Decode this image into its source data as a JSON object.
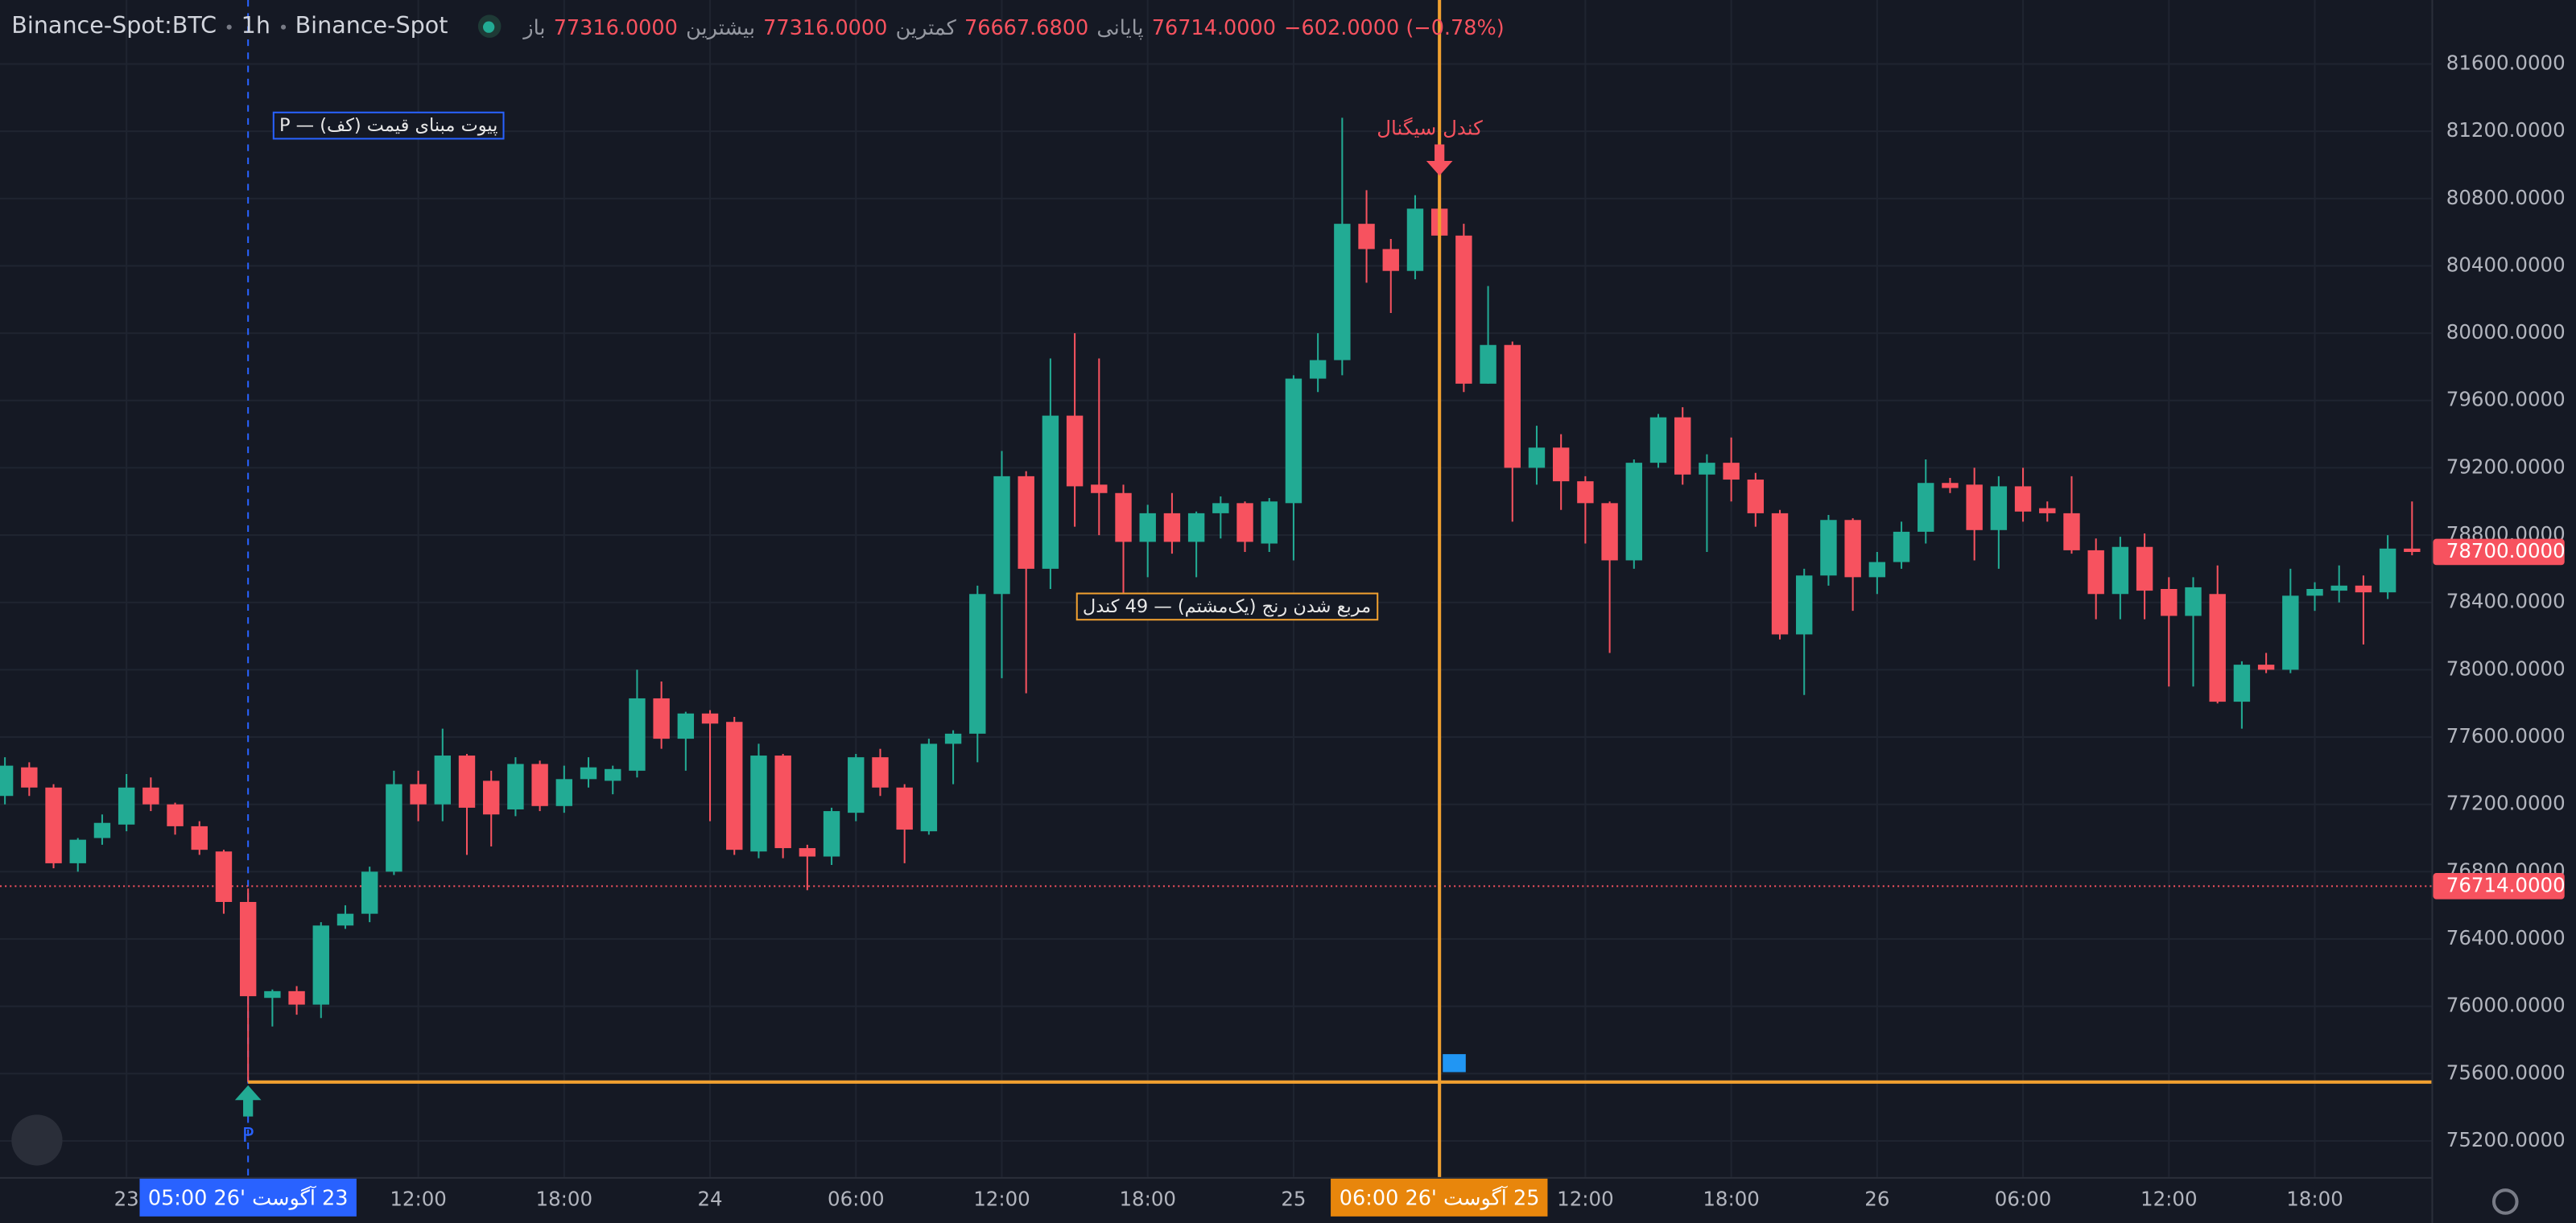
{
  "chart_data": {
    "type": "candlestick",
    "symbol": "Binance-Spot:BTC",
    "interval": "1h",
    "exchange": "Binance-Spot",
    "legend": [
      {
        "label": "باز",
        "value": "77316.0000"
      },
      {
        "label": "بیشترین",
        "value": "77316.0000"
      },
      {
        "label": "کمترین",
        "value": "76667.6800"
      },
      {
        "label": "پایانی",
        "value": "76714.0000"
      }
    ],
    "change": "−602.0000 (−0.78%)",
    "up_color": "#22ab94",
    "down_color": "#f7525f",
    "grid": true,
    "categories": [
      null,
      null,
      null,
      null,
      null,
      "23",
      null,
      null,
      null,
      null,
      null,
      null,
      null,
      null,
      null,
      null,
      null,
      "12:00",
      null,
      null,
      null,
      null,
      null,
      "18:00",
      null,
      null,
      null,
      null,
      null,
      "24",
      null,
      null,
      null,
      null,
      null,
      "06:00",
      null,
      null,
      null,
      null,
      null,
      "12:00",
      null,
      null,
      null,
      null,
      null,
      "18:00",
      null,
      null,
      null,
      null,
      null,
      "25",
      null,
      null,
      null,
      null,
      null,
      null,
      null,
      null,
      null,
      null,
      null,
      "12:00",
      null,
      null,
      null,
      null,
      null,
      "18:00",
      null,
      null,
      null,
      null,
      null,
      "26",
      null,
      null,
      null,
      null,
      null,
      "06:00",
      null,
      null,
      null,
      null,
      null,
      "12:00",
      null,
      null,
      null,
      null,
      null,
      "18:00",
      null,
      null,
      null,
      null
    ],
    "open": [
      77250,
      77420,
      77300,
      76850,
      77000,
      77080,
      77300,
      77200,
      77070,
      76920,
      76620,
      76050,
      76090,
      76010,
      76480,
      76550,
      76800,
      77320,
      77200,
      77490,
      77340,
      77170,
      77440,
      77190,
      77350,
      77340,
      77400,
      77830,
      77590,
      77740,
      77690,
      76920,
      77490,
      76940,
      76890,
      77150,
      77480,
      77300,
      77040,
      77560,
      77620,
      78450,
      79150,
      78600,
      79510,
      79100,
      79050,
      78760,
      78930,
      78760,
      78930,
      78990,
      78750,
      78990,
      79730,
      79840,
      80650,
      80500,
      80370,
      80740,
      80580,
      79700,
      79930,
      79200,
      79320,
      79120,
      78990,
      78650,
      79230,
      79500,
      79160,
      79230,
      79130,
      78930,
      78210,
      78560,
      78890,
      78550,
      78640,
      78820,
      79110,
      79100,
      78830,
      79090,
      78960,
      78930,
      78710,
      78450,
      78730,
      78480,
      78320,
      78450,
      77810,
      78030,
      78000,
      78440,
      78470,
      78500,
      78460,
      78720
    ],
    "high": [
      77480,
      77450,
      77320,
      77000,
      77140,
      77380,
      77360,
      77210,
      77100,
      76930,
      76700,
      76100,
      76120,
      76500,
      76600,
      76830,
      77400,
      77400,
      77650,
      77500,
      77400,
      77480,
      77460,
      77430,
      77480,
      77430,
      78000,
      77930,
      77750,
      77760,
      77720,
      77560,
      77500,
      76960,
      77180,
      77500,
      77530,
      77320,
      77590,
      77640,
      78500,
      79300,
      79180,
      79850,
      80000,
      79850,
      79100,
      78980,
      79050,
      78940,
      79030,
      79000,
      79020,
      79750,
      80000,
      81280,
      80850,
      80560,
      80820,
      80830,
      80650,
      80280,
      79950,
      79450,
      79400,
      79150,
      79000,
      79250,
      79520,
      79560,
      79280,
      79380,
      79170,
      78950,
      78600,
      78920,
      78900,
      78700,
      78880,
      79250,
      79140,
      79200,
      79150,
      79200,
      79000,
      79150,
      78780,
      78790,
      78810,
      78550,
      78550,
      78620,
      78050,
      78100,
      78600,
      78520,
      78620,
      78560,
      78800,
      79000
    ],
    "low": [
      77200,
      77250,
      76820,
      76800,
      76960,
      77040,
      77160,
      77020,
      76900,
      76550,
      75550,
      75880,
      75950,
      75930,
      76460,
      76500,
      76780,
      77100,
      77100,
      76900,
      76950,
      77130,
      77160,
      77150,
      77300,
      77260,
      77360,
      77530,
      77400,
      77100,
      76900,
      76880,
      76880,
      76690,
      76840,
      77100,
      77250,
      76850,
      77020,
      77320,
      77450,
      77950,
      77860,
      78480,
      78850,
      78800,
      78450,
      78550,
      78690,
      78550,
      78780,
      78700,
      78700,
      78650,
      79650,
      79750,
      80300,
      80120,
      80320,
      80400,
      79650,
      79700,
      78880,
      79100,
      78950,
      78750,
      78100,
      78600,
      79200,
      79100,
      78700,
      79000,
      78850,
      78180,
      77850,
      78500,
      78350,
      78450,
      78600,
      78750,
      79050,
      78650,
      78600,
      78880,
      78880,
      78690,
      78300,
      78300,
      78300,
      77900,
      77900,
      77800,
      77650,
      77980,
      77980,
      78350,
      78400,
      78150,
      78420,
      78680
    ],
    "close": [
      77430,
      77300,
      76850,
      76990,
      77090,
      77300,
      77200,
      77070,
      76930,
      76620,
      76060,
      76090,
      76010,
      76480,
      76550,
      76800,
      77320,
      77200,
      77490,
      77180,
      77140,
      77440,
      77190,
      77350,
      77420,
      77410,
      77830,
      77590,
      77740,
      77680,
      76930,
      77490,
      76940,
      76890,
      77160,
      77480,
      77300,
      77050,
      77560,
      77620,
      78450,
      79150,
      78600,
      79510,
      79090,
      79050,
      78760,
      78930,
      78760,
      78930,
      78990,
      78760,
      79000,
      79730,
      79840,
      80650,
      80500,
      80370,
      80740,
      80580,
      79700,
      79930,
      79200,
      79320,
      79120,
      78990,
      78650,
      79230,
      79500,
      79160,
      79230,
      79130,
      78930,
      78210,
      78560,
      78890,
      78550,
      78640,
      78820,
      79110,
      79080,
      78830,
      79090,
      78940,
      78930,
      78710,
      78450,
      78730,
      78470,
      78320,
      78490,
      77810,
      78030,
      78000,
      78440,
      78480,
      78500,
      78460,
      78720,
      78700
    ],
    "ylim": [
      75000,
      81980
    ],
    "yticks": [
      {
        "value": 75200,
        "label": "75200.0000"
      },
      {
        "value": 75600,
        "label": "75600.0000"
      },
      {
        "value": 76000,
        "label": "76000.0000"
      },
      {
        "value": 76400,
        "label": "76400.0000"
      },
      {
        "value": 76800,
        "label": "76800.0000"
      },
      {
        "value": 77200,
        "label": "77200.0000"
      },
      {
        "value": 77600,
        "label": "77600.0000"
      },
      {
        "value": 78000,
        "label": "78000.0000"
      },
      {
        "value": 78400,
        "label": "78400.0000"
      },
      {
        "value": 78800,
        "label": "78800.0000"
      },
      {
        "value": 79200,
        "label": "79200.0000"
      },
      {
        "value": 79600,
        "label": "79600.0000"
      },
      {
        "value": 80000,
        "label": "80000.0000"
      },
      {
        "value": 80400,
        "label": "80400.0000"
      },
      {
        "value": 80800,
        "label": "80800.0000"
      },
      {
        "value": 81200,
        "label": "81200.0000"
      },
      {
        "value": 81600,
        "label": "81600.0000"
      }
    ],
    "price_labels": [
      {
        "value": 78700,
        "label": "78700.0000",
        "color": "#f7525f",
        "line": false
      },
      {
        "value": 76714,
        "label": "76714.0000",
        "color": "#f7525f",
        "line": true
      }
    ],
    "crosshair_labels": [
      {
        "index": 10,
        "label": "23 آگوست '26 05:00",
        "color": "#2962ff"
      },
      {
        "index": 59,
        "label": "25 آگوست '26 06:00",
        "color": "#e8860c"
      }
    ],
    "annotations": {
      "pivot": {
        "text": "پیوت مبنای قیمت (کف) — P",
        "marker": "P",
        "index": 10,
        "level": 75550,
        "color": "#2962ff",
        "line_color": "#f0a030"
      },
      "range": {
        "text": "مربع شدن رنج (یک‌مشتم) — 49 کندل"
      },
      "signal": {
        "text": "کندل سیگنال",
        "index": 59,
        "color": "#f0a030"
      }
    }
  }
}
